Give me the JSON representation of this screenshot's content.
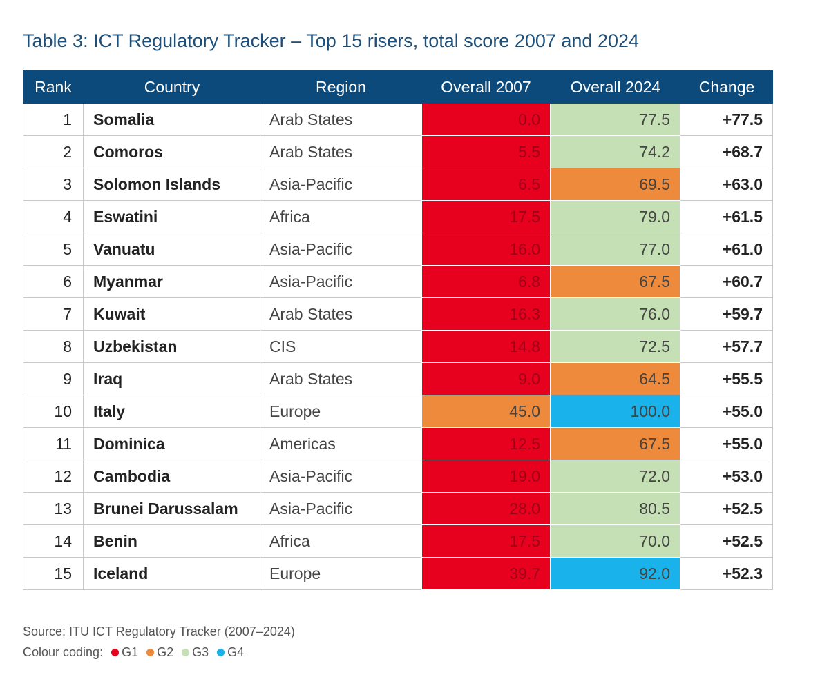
{
  "title": "Table 3: ICT Regulatory Tracker – Top 15 risers, total score 2007 and 2024",
  "table": {
    "columns": [
      "Rank",
      "Country",
      "Region",
      "Overall 2007",
      "Overall 2024",
      "Change"
    ],
    "rows": [
      {
        "rank": "1",
        "country": "Somalia",
        "region": "Arab States",
        "overall_2007": "0.0",
        "overall_2024": "77.5",
        "change": "+77.5",
        "colors": [
          "#e8001f",
          "#c5e0b4"
        ]
      },
      {
        "rank": "2",
        "country": "Comoros",
        "region": "Arab States",
        "overall_2007": "5.5",
        "overall_2024": "74.2",
        "change": "+68.7",
        "colors": [
          "#e8001f",
          "#c5e0b4"
        ]
      },
      {
        "rank": "3",
        "country": "Solomon Islands",
        "region": "Asia-Pacific",
        "overall_2007": "6.5",
        "overall_2024": "69.5",
        "change": "+63.0",
        "colors": [
          "#e8001f",
          "#ee8a3c"
        ]
      },
      {
        "rank": "4",
        "country": "Eswatini",
        "region": "Africa",
        "overall_2007": "17.5",
        "overall_2024": "79.0",
        "change": "+61.5",
        "colors": [
          "#e8001f",
          "#c5e0b4"
        ]
      },
      {
        "rank": "5",
        "country": "Vanuatu",
        "region": "Asia-Pacific",
        "overall_2007": "16.0",
        "overall_2024": "77.0",
        "change": "+61.0",
        "colors": [
          "#e8001f",
          "#c5e0b4"
        ]
      },
      {
        "rank": "6",
        "country": "Myanmar",
        "region": "Asia-Pacific",
        "overall_2007": "6.8",
        "overall_2024": "67.5",
        "change": "+60.7",
        "colors": [
          "#e8001f",
          "#ee8a3c"
        ]
      },
      {
        "rank": "7",
        "country": "Kuwait",
        "region": "Arab States",
        "overall_2007": "16.3",
        "overall_2024": "76.0",
        "change": "+59.7",
        "colors": [
          "#e8001f",
          "#c5e0b4"
        ]
      },
      {
        "rank": "8",
        "country": "Uzbekistan",
        "region": "CIS",
        "overall_2007": "14.8",
        "overall_2024": "72.5",
        "change": "+57.7",
        "colors": [
          "#e8001f",
          "#c5e0b4"
        ]
      },
      {
        "rank": "9",
        "country": "Iraq",
        "region": "Arab States",
        "overall_2007": "9.0",
        "overall_2024": "64.5",
        "change": "+55.5",
        "colors": [
          "#e8001f",
          "#ee8a3c"
        ]
      },
      {
        "rank": "10",
        "country": "Italy",
        "region": "Europe",
        "overall_2007": "45.0",
        "overall_2024": "100.0",
        "change": "+55.0",
        "colors": [
          "#ee8a3c",
          "#1ab2ea"
        ]
      },
      {
        "rank": "11",
        "country": "Dominica",
        "region": "Americas",
        "overall_2007": "12.5",
        "overall_2024": "67.5",
        "change": "+55.0",
        "colors": [
          "#e8001f",
          "#ee8a3c"
        ]
      },
      {
        "rank": "12",
        "country": "Cambodia",
        "region": "Asia-Pacific",
        "overall_2007": "19.0",
        "overall_2024": "72.0",
        "change": "+53.0",
        "colors": [
          "#e8001f",
          "#c5e0b4"
        ]
      },
      {
        "rank": "13",
        "country": "Brunei Darussalam",
        "region": "Asia-Pacific",
        "overall_2007": "28.0",
        "overall_2024": "80.5",
        "change": "+52.5",
        "colors": [
          "#e8001f",
          "#c5e0b4"
        ]
      },
      {
        "rank": "14",
        "country": "Benin",
        "region": "Africa",
        "overall_2007": "17.5",
        "overall_2024": "70.0",
        "change": "+52.5",
        "colors": [
          "#e8001f",
          "#c5e0b4"
        ]
      },
      {
        "rank": "15",
        "country": "Iceland",
        "region": "Europe",
        "overall_2007": "39.7",
        "overall_2024": "92.0",
        "change": "+52.3",
        "colors": [
          "#e8001f",
          "#1ab2ea"
        ]
      }
    ]
  },
  "source": "Source: ITU ICT Regulatory Tracker (2007–2024)",
  "legend": {
    "label": "Colour coding:",
    "items": [
      {
        "label": "G1",
        "color": "#e8001f"
      },
      {
        "label": "G2",
        "color": "#ee8a3c"
      },
      {
        "label": "G3",
        "color": "#c5e0b4"
      },
      {
        "label": "G4",
        "color": "#1ab2ea"
      }
    ]
  }
}
